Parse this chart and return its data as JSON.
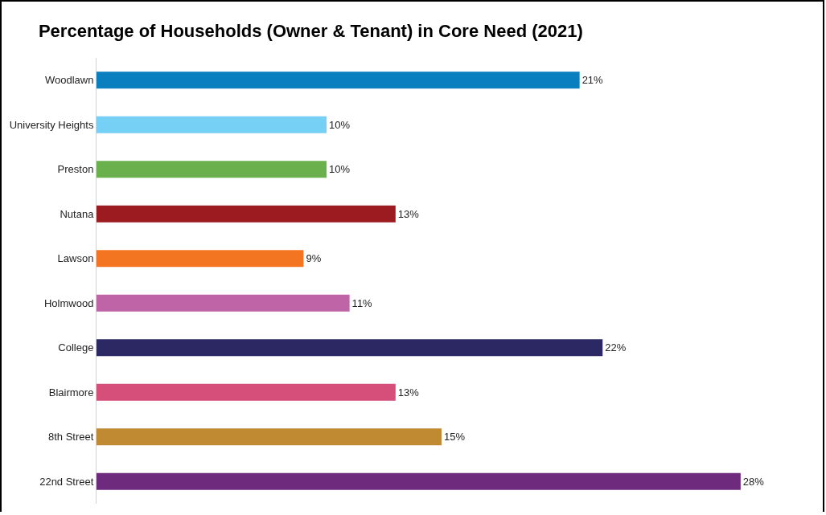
{
  "chart_data": {
    "type": "bar",
    "orientation": "horizontal",
    "title": "Percentage of Households (Owner & Tenant) in Core Need (2021)",
    "categories": [
      "Woodlawn",
      "University Heights",
      "Preston",
      "Nutana",
      "Lawson",
      "Holmwood",
      "College",
      "Blairmore",
      "8th Street",
      "22nd Street"
    ],
    "values": [
      21,
      10,
      10,
      13,
      9,
      11,
      22,
      13,
      15,
      28
    ],
    "colors": [
      "#0a7fc0",
      "#76cff5",
      "#6ab04c",
      "#9b1b21",
      "#f47521",
      "#c064a8",
      "#2b2864",
      "#d64f7a",
      "#c08a33",
      "#6e2a7c"
    ],
    "value_labels": [
      "21%",
      "10%",
      "10%",
      "13%",
      "9%",
      "11%",
      "22%",
      "13%",
      "15%",
      "28%"
    ],
    "tick_labels": "y"
  }
}
